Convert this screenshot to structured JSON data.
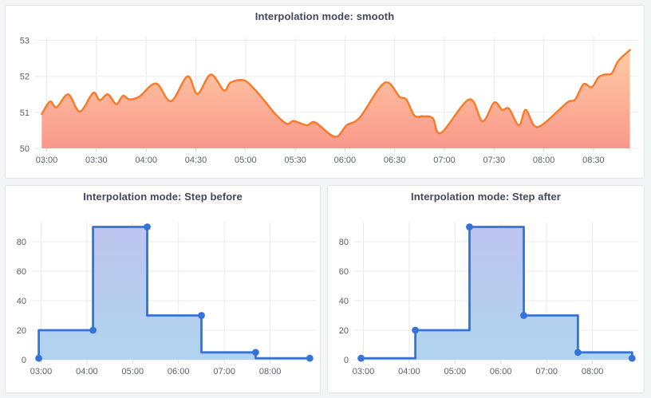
{
  "dashboard": {
    "background": "#f3f4f6",
    "panel_background": "#ffffff",
    "panel_border": "#e2e4e9"
  },
  "chart_data": [
    {
      "type": "area",
      "interpolation": "smooth",
      "title": "Interpolation mode: smooth",
      "x_unit": "minutes from 03:00",
      "x": [
        -3,
        2,
        6,
        13,
        20,
        28,
        32,
        37,
        42,
        46,
        50,
        56,
        66,
        75,
        85,
        91,
        99,
        107,
        111,
        119,
        125,
        132,
        138,
        145,
        149,
        157,
        162,
        174,
        181,
        189,
        204,
        213,
        217,
        222,
        227,
        233,
        238,
        255,
        263,
        270,
        275,
        279,
        285,
        289,
        294,
        299,
        310,
        315,
        319,
        324,
        329,
        333,
        337,
        341,
        345,
        352
      ],
      "values": [
        50.95,
        51.3,
        51.14,
        51.5,
        51.02,
        51.54,
        51.34,
        51.5,
        51.23,
        51.46,
        51.36,
        51.44,
        51.8,
        51.31,
        52.0,
        51.51,
        52.05,
        51.61,
        51.83,
        51.89,
        51.66,
        51.29,
        50.95,
        50.68,
        50.76,
        50.64,
        50.72,
        50.32,
        50.64,
        50.86,
        51.82,
        51.43,
        51.36,
        50.91,
        50.89,
        50.84,
        50.43,
        51.36,
        50.75,
        51.27,
        51.07,
        51.1,
        50.64,
        51.07,
        50.64,
        50.65,
        51.1,
        51.3,
        51.36,
        51.78,
        51.7,
        51.97,
        52.05,
        52.08,
        52.43,
        52.73
      ],
      "x_ticks": [
        {
          "t": 0,
          "label": "03:00"
        },
        {
          "t": 30,
          "label": "03:30"
        },
        {
          "t": 60,
          "label": "04:00"
        },
        {
          "t": 90,
          "label": "04:30"
        },
        {
          "t": 120,
          "label": "05:00"
        },
        {
          "t": 150,
          "label": "05:30"
        },
        {
          "t": 180,
          "label": "06:00"
        },
        {
          "t": 210,
          "label": "06:30"
        },
        {
          "t": 240,
          "label": "07:00"
        },
        {
          "t": 270,
          "label": "07:30"
        },
        {
          "t": 300,
          "label": "08:00"
        },
        {
          "t": 330,
          "label": "08:30"
        }
      ],
      "y_ticks": [
        50,
        51,
        52,
        53
      ],
      "xlim": [
        -7,
        357
      ],
      "ylim": [
        50,
        53.1
      ],
      "line_color": "#f87a26",
      "fill_gradient_top": "#ffd2a8",
      "fill_gradient_bottom": "#f9988b",
      "show_points": false,
      "grid": true,
      "legend": "none"
    },
    {
      "type": "area",
      "interpolation": "step-before",
      "title": "Interpolation mode: Step before",
      "x_unit": "minutes from 03:00",
      "x": [
        -3,
        68,
        139,
        210,
        281,
        352
      ],
      "values": [
        1,
        20,
        90,
        30,
        5,
        1
      ],
      "x_ticks": [
        {
          "t": 0,
          "label": "03:00"
        },
        {
          "t": 60,
          "label": "04:00"
        },
        {
          "t": 120,
          "label": "05:00"
        },
        {
          "t": 180,
          "label": "06:00"
        },
        {
          "t": 240,
          "label": "07:00"
        },
        {
          "t": 300,
          "label": "08:00"
        }
      ],
      "y_ticks": [
        0,
        20,
        40,
        60,
        80
      ],
      "xlim": [
        -12,
        360
      ],
      "ylim": [
        0,
        93
      ],
      "line_color": "#3573d9",
      "fill_gradient_top": "#bfc4ee",
      "fill_gradient_bottom": "#b0d4ef",
      "show_points": true,
      "grid": true,
      "legend": "none"
    },
    {
      "type": "area",
      "interpolation": "step-after",
      "title": "Interpolation mode: Step after",
      "x_unit": "minutes from 03:00",
      "x": [
        -3,
        68,
        139,
        210,
        281,
        352
      ],
      "values": [
        1,
        20,
        90,
        30,
        5,
        1
      ],
      "x_ticks": [
        {
          "t": 0,
          "label": "03:00"
        },
        {
          "t": 60,
          "label": "04:00"
        },
        {
          "t": 120,
          "label": "05:00"
        },
        {
          "t": 180,
          "label": "06:00"
        },
        {
          "t": 240,
          "label": "07:00"
        },
        {
          "t": 300,
          "label": "08:00"
        }
      ],
      "y_ticks": [
        0,
        20,
        40,
        60,
        80
      ],
      "xlim": [
        -12,
        360
      ],
      "ylim": [
        0,
        93
      ],
      "line_color": "#3573d9",
      "fill_gradient_top": "#bfc4ee",
      "fill_gradient_bottom": "#b0d4ef",
      "show_points": true,
      "grid": true,
      "legend": "none"
    }
  ]
}
